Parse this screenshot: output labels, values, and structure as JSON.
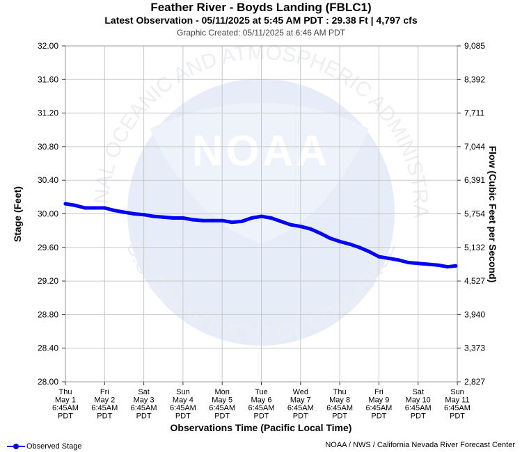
{
  "header": {
    "title": "Feather River - Boyds Landing (FBLC1)",
    "subtitle": "Latest Observation - 05/11/2025 at 5:45 AM PDT : 29.38 Ft | 4,797 cfs",
    "created": "Graphic Created: 05/11/2025 at 6:46 AM PDT"
  },
  "watermark": {
    "logo_text": "NOAA",
    "ring_text_top": "NATIONAL OCEANIC AND ATMOSPHERIC ADMINISTRATION",
    "ring_text_bottom": "U.S. DEPARTMENT OF COMMERCE"
  },
  "footer": {
    "credit": "NOAA / NWS / California Nevada River Forecast Center",
    "legend_label": "Observed Stage"
  },
  "colors": {
    "series": "#0000ff",
    "grid": "#c8c8c8",
    "watermark": "#e6ecf8"
  },
  "chart_data": {
    "type": "line",
    "title": "Feather River - Boyds Landing (FBLC1)",
    "xlabel": "Observations Time (Pacific Local Time)",
    "ylabel": "Stage (Feet)",
    "y2label": "Flow (Cubic Feet per Second)",
    "ylim": [
      28.0,
      32.0
    ],
    "yticks": [
      "28.00",
      "28.40",
      "28.80",
      "29.20",
      "29.60",
      "30.00",
      "30.40",
      "30.80",
      "31.20",
      "31.60",
      "32.00"
    ],
    "y2ticks": [
      "2,827",
      "3,373",
      "3,940",
      "4,527",
      "5,132",
      "5,754",
      "6,391",
      "7,044",
      "7,711",
      "8,392",
      "9,085"
    ],
    "xticks": [
      [
        "Thu",
        "May 1",
        "6:45AM",
        "PDT"
      ],
      [
        "Fri",
        "May 2",
        "6:45AM",
        "PDT"
      ],
      [
        "Sat",
        "May 3",
        "6:45AM",
        "PDT"
      ],
      [
        "Sun",
        "May 4",
        "6:45AM",
        "PDT"
      ],
      [
        "Mon",
        "May 5",
        "6:45AM",
        "PDT"
      ],
      [
        "Tue",
        "May 6",
        "6:45AM",
        "PDT"
      ],
      [
        "Wed",
        "May 7",
        "6:45AM",
        "PDT"
      ],
      [
        "Thu",
        "May 8",
        "6:45AM",
        "PDT"
      ],
      [
        "Fri",
        "May 9",
        "6:45AM",
        "PDT"
      ],
      [
        "Sat",
        "May 10",
        "6:45AM",
        "PDT"
      ],
      [
        "Sun",
        "May 11",
        "6:45AM",
        "PDT"
      ]
    ],
    "grid": true,
    "legend": "bottom-left",
    "series": [
      {
        "name": "Observed Stage",
        "x": [
          "05/01 06:45",
          "05/01 12:45",
          "05/01 18:45",
          "05/02 00:45",
          "05/02 06:45",
          "05/02 12:45",
          "05/02 18:45",
          "05/03 00:45",
          "05/03 06:45",
          "05/03 12:45",
          "05/03 18:45",
          "05/04 00:45",
          "05/04 06:45",
          "05/04 12:45",
          "05/04 18:45",
          "05/05 00:45",
          "05/05 06:45",
          "05/05 12:45",
          "05/05 18:45",
          "05/06 00:45",
          "05/06 06:45",
          "05/06 12:45",
          "05/06 18:45",
          "05/07 00:45",
          "05/07 06:45",
          "05/07 12:45",
          "05/07 18:45",
          "05/08 00:45",
          "05/08 06:45",
          "05/08 12:45",
          "05/08 18:45",
          "05/09 00:45",
          "05/09 06:45",
          "05/09 12:45",
          "05/09 18:45",
          "05/10 00:45",
          "05/10 06:45",
          "05/10 12:45",
          "05/10 18:45",
          "05/11 00:45",
          "05/11 05:45"
        ],
        "y": [
          30.12,
          30.1,
          30.07,
          30.07,
          30.07,
          30.04,
          30.02,
          30.0,
          29.99,
          29.97,
          29.96,
          29.95,
          29.95,
          29.93,
          29.92,
          29.92,
          29.92,
          29.9,
          29.91,
          29.95,
          29.97,
          29.95,
          29.91,
          29.87,
          29.85,
          29.82,
          29.77,
          29.71,
          29.67,
          29.64,
          29.6,
          29.55,
          29.49,
          29.47,
          29.45,
          29.42,
          29.41,
          29.4,
          29.39,
          29.37,
          29.38
        ]
      }
    ]
  }
}
